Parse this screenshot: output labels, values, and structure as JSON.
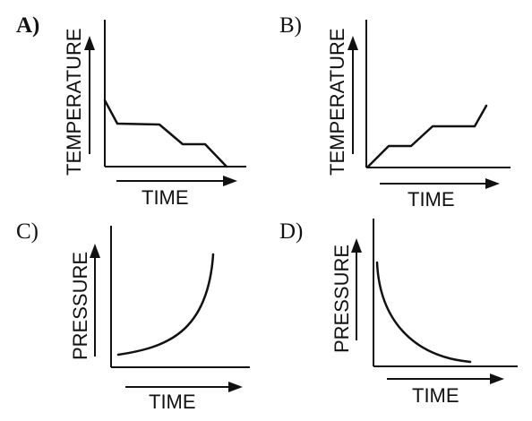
{
  "panels": [
    {
      "letter": "A)",
      "ylabel": "TEMPERATURE",
      "xlabel": "TIME"
    },
    {
      "letter": "B)",
      "ylabel": "TEMPERATURE",
      "xlabel": "TIME"
    },
    {
      "letter": "C)",
      "ylabel": "PRESSURE",
      "xlabel": "TIME"
    },
    {
      "letter": "D)",
      "ylabel": "PRESSURE",
      "xlabel": "TIME"
    }
  ]
}
